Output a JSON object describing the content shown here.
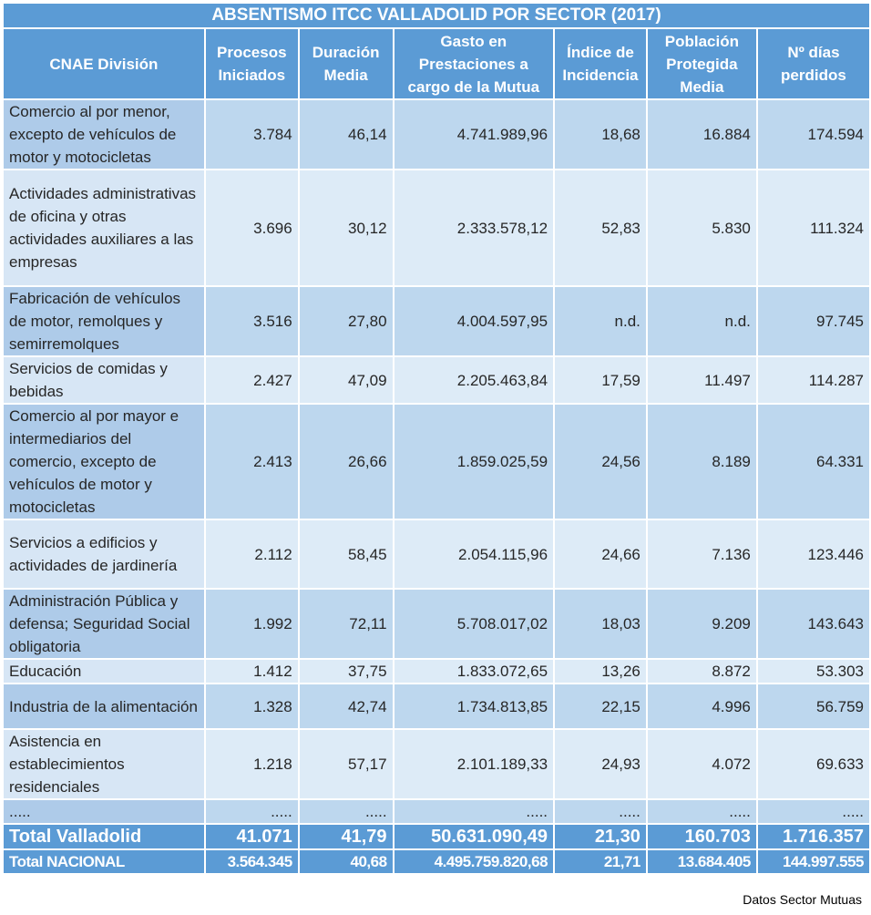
{
  "title": "ABSENTISMO ITCC VALLADOLID POR SECTOR (2017)",
  "headers": [
    "CNAE División",
    "Procesos Iniciados",
    "Duración Media",
    "Gasto en Prestaciones a cargo de la Mutua",
    "Índice de Incidencia",
    "Población Protegida Media",
    "Nº días perdidos"
  ],
  "rows": [
    [
      "Comercio al por menor, excepto de vehículos de motor y motocicletas",
      "3.784",
      "46,14",
      "4.741.989,96",
      "18,68",
      "16.884",
      "174.594"
    ],
    [
      "Actividades administrativas de oficina y otras actividades auxiliares a las empresas",
      "3.696",
      "30,12",
      "2.333.578,12",
      "52,83",
      "5.830",
      "111.324"
    ],
    [
      "Fabricación de vehículos de motor, remolques y semirremolques",
      "3.516",
      "27,80",
      "4.004.597,95",
      "n.d.",
      "n.d.",
      "97.745"
    ],
    [
      "Servicios de comidas y bebidas",
      "2.427",
      "47,09",
      "2.205.463,84",
      "17,59",
      "11.497",
      "114.287"
    ],
    [
      "Comercio al por mayor e intermediarios del comercio, excepto de vehículos de motor y motocicletas",
      "2.413",
      "26,66",
      "1.859.025,59",
      "24,56",
      "8.189",
      "64.331"
    ],
    [
      "Servicios a edificios y actividades de jardinería",
      "2.112",
      "58,45",
      "2.054.115,96",
      "24,66",
      "7.136",
      "123.446"
    ],
    [
      "Administración Pública y defensa; Seguridad Social obligatoria",
      "1.992",
      "72,11",
      "5.708.017,02",
      "18,03",
      "9.209",
      "143.643"
    ],
    [
      "Educación",
      "1.412",
      "37,75",
      "1.833.072,65",
      "13,26",
      "8.872",
      "53.303"
    ],
    [
      "Industria de la alimentación",
      "1.328",
      "42,74",
      "1.734.813,85",
      "22,15",
      "4.996",
      "56.759"
    ],
    [
      "Asistencia en establecimientos residenciales",
      "1.218",
      "57,17",
      "2.101.189,33",
      "24,93",
      "4.072",
      "69.633"
    ],
    [
      ".....",
      ".....",
      ".....",
      ".....",
      ".....",
      ".....",
      "....."
    ]
  ],
  "total_valladolid": [
    "Total Valladolid",
    "41.071",
    "41,79",
    "50.631.090,49",
    "21,30",
    "160.703",
    "1.716.357"
  ],
  "total_nacional": [
    "Total NACIONAL",
    "3.564.345",
    "40,68",
    "4.495.759.820,68",
    "21,71",
    "13.684.405",
    "144.997.555"
  ],
  "footer": "Datos Sector Mutuas"
}
